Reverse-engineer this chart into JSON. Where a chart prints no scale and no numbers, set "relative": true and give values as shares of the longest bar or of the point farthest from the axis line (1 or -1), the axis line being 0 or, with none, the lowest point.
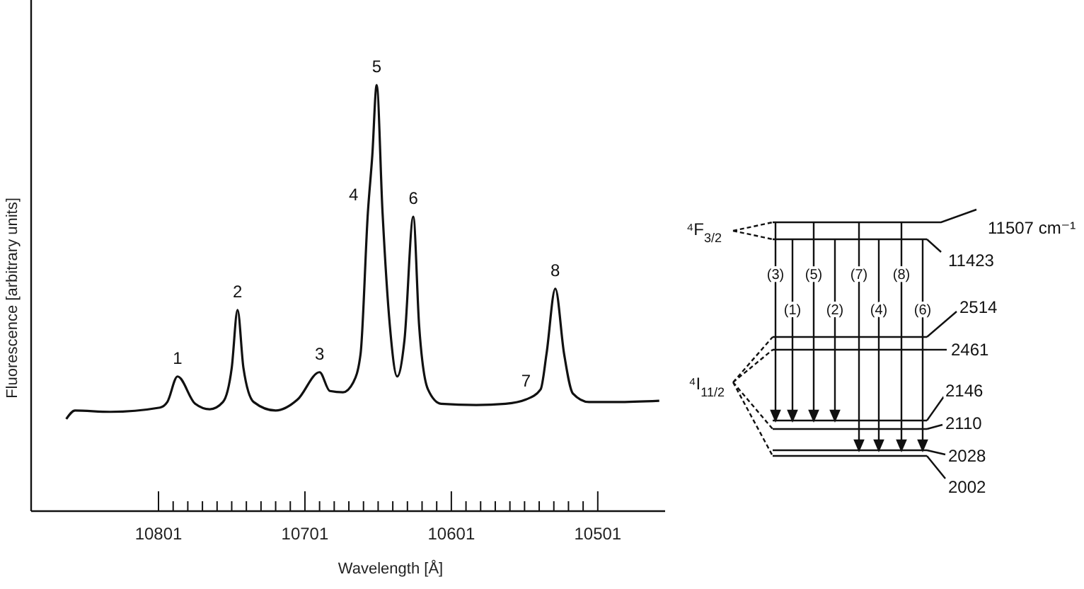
{
  "chart_data": {
    "type": "line",
    "relative": true,
    "xlabel": "Wavelength [Å]",
    "ylabel": "Fluorescence [arbitrary units]",
    "xlim": [
      10888,
      10455
    ],
    "xticks": [
      10801,
      {
        "value": 10791,
        "label": null
      },
      {
        "value": 10781,
        "label": null
      },
      {
        "value": 10771,
        "label": null
      },
      {
        "value": 10761,
        "label": null
      },
      {
        "value": 10751,
        "label": null
      },
      {
        "value": 10741,
        "label": null
      },
      {
        "value": 10731,
        "label": null
      },
      {
        "value": 10721,
        "label": null
      },
      {
        "value": 10711,
        "label": null
      },
      10701,
      {
        "value": 10691,
        "label": null
      },
      {
        "value": 10681,
        "label": null
      },
      {
        "value": 10671,
        "label": null
      },
      {
        "value": 10661,
        "label": null
      },
      {
        "value": 10651,
        "label": null
      },
      {
        "value": 10641,
        "label": null
      },
      {
        "value": 10631,
        "label": null
      },
      {
        "value": 10621,
        "label": null
      },
      {
        "value": 10611,
        "label": null
      },
      10601,
      {
        "value": 10591,
        "label": null
      },
      {
        "value": 10581,
        "label": null
      },
      {
        "value": 10571,
        "label": null
      },
      {
        "value": 10561,
        "label": null
      },
      {
        "value": 10551,
        "label": null
      },
      {
        "value": 10541,
        "label": null
      },
      {
        "value": 10531,
        "label": null
      },
      {
        "value": 10521,
        "label": null
      },
      {
        "value": 10511,
        "label": null
      },
      10501
    ],
    "series": [
      {
        "color": "#111111",
        "x": [
          10864,
          10858,
          10834,
          10800,
          10795,
          10788,
          10776,
          10766,
          10757,
          10751,
          10747,
          10743,
          10736,
          10721,
          10706,
          10691,
          10684,
          10675,
          10668,
          10663,
          10658,
          10655,
          10652,
          10648,
          10643,
          10638,
          10633,
          10627,
          10623,
          10617,
          10608,
          10584,
          10564,
          10550,
          10540,
          10536,
          10530,
          10524,
          10518,
          10507,
          10488,
          10459
        ],
        "values": [
          0.216,
          0.236,
          0.233,
          0.243,
          0.256,
          0.316,
          0.252,
          0.239,
          0.256,
          0.336,
          0.472,
          0.336,
          0.256,
          0.236,
          0.262,
          0.326,
          0.282,
          0.279,
          0.302,
          0.369,
          0.701,
          0.834,
          1.0,
          0.701,
          0.435,
          0.316,
          0.402,
          0.691,
          0.435,
          0.286,
          0.252,
          0.249,
          0.252,
          0.262,
          0.286,
          0.369,
          0.522,
          0.369,
          0.276,
          0.256,
          0.256,
          0.259
        ]
      }
    ],
    "annotations": [
      {
        "text": "1",
        "x": 10788,
        "y": 0.316
      },
      {
        "text": "2",
        "x": 10747,
        "y": 0.472
      },
      {
        "text": "3",
        "x": 10691,
        "y": 0.326
      },
      {
        "text": "4",
        "x": 10662,
        "y": 0.7
      },
      {
        "text": "5",
        "x": 10652,
        "y": 1.0
      },
      {
        "text": "6",
        "x": 10627,
        "y": 0.691
      },
      {
        "text": "7",
        "x": 10550,
        "y": 0.262
      },
      {
        "text": "8",
        "x": 10530,
        "y": 0.522
      },
      "⁴F$_{3/2}$",
      "11507 cm⁻¹",
      "11423",
      "2514",
      "2461",
      "2146",
      "2110",
      "2028",
      "2002",
      "⁴I$_{11/2}$",
      "(3)",
      "(5)",
      "(7)",
      "(8)",
      "(1)",
      "(2)",
      "(4)",
      "(6)"
    ]
  }
}
